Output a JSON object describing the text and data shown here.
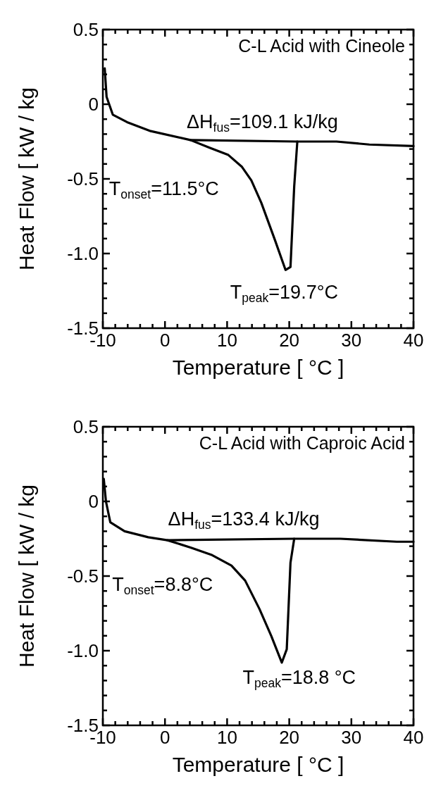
{
  "chart_data": [
    {
      "type": "line",
      "title": "C-L Acid with Cineole",
      "xlabel": "Temperature [ °C ]",
      "ylabel": "Heat Flow [ kW / kg",
      "xlim": [
        -10,
        40
      ],
      "ylim": [
        -1.5,
        0.5
      ],
      "xticks": [
        -10,
        {
          "value": -8,
          "label": null
        },
        {
          "value": -6,
          "label": null
        },
        {
          "value": -4,
          "label": null
        },
        {
          "value": -2,
          "label": null
        },
        0,
        {
          "value": 2,
          "label": null
        },
        {
          "value": 4,
          "label": null
        },
        {
          "value": 6,
          "label": null
        },
        {
          "value": 8,
          "label": null
        },
        10,
        {
          "value": 12,
          "label": null
        },
        {
          "value": 14,
          "label": null
        },
        {
          "value": 16,
          "label": null
        },
        {
          "value": 18,
          "label": null
        },
        20,
        {
          "value": 22,
          "label": null
        },
        {
          "value": 24,
          "label": null
        },
        {
          "value": 26,
          "label": null
        },
        {
          "value": 28,
          "label": null
        },
        30,
        {
          "value": 32,
          "label": null
        },
        {
          "value": 34,
          "label": null
        },
        {
          "value": 36,
          "label": null
        },
        {
          "value": 38,
          "label": null
        },
        40
      ],
      "yticks": [
        0.5,
        {
          "value": 0.4,
          "label": null
        },
        {
          "value": 0.3,
          "label": null
        },
        {
          "value": 0.2,
          "label": null
        },
        {
          "value": 0.1,
          "label": null
        },
        0,
        {
          "value": -0.1,
          "label": null
        },
        {
          "value": -0.2,
          "label": null
        },
        {
          "value": -0.3,
          "label": null
        },
        {
          "value": -0.4,
          "label": null
        },
        -0.5,
        {
          "value": -0.6,
          "label": null
        },
        {
          "value": -0.7,
          "label": null
        },
        {
          "value": -0.8,
          "label": null
        },
        {
          "value": -0.9,
          "label": null
        },
        {
          "value": -1,
          "label": "-1.0"
        },
        {
          "value": -1.1,
          "label": null
        },
        {
          "value": -1.2,
          "label": null
        },
        {
          "value": -1.3,
          "label": null
        },
        {
          "value": -1.4,
          "label": null
        },
        -1.5
      ],
      "series": [
        {
          "color": "#000000",
          "x": [
            -9.7,
            -9.4,
            -8.4,
            -6.1,
            -2.3,
            4.1,
            7.1,
            10.2,
            12.4,
            13.9,
            15.5,
            17.7,
            19.4,
            20.2,
            20.8,
            21.3,
            27.6,
            32.9,
            40
          ],
          "values": [
            0.24,
            0.05,
            -0.07,
            -0.12,
            -0.18,
            -0.24,
            -0.29,
            -0.34,
            -0.42,
            -0.51,
            -0.66,
            -0.91,
            -1.11,
            -1.09,
            -0.55,
            -0.25,
            -0.25,
            -0.27,
            -0.28
          ]
        },
        {
          "color": "#000000",
          "x": [
            4.1,
            21.3
          ],
          "values": [
            -0.24,
            -0.25
          ]
        }
      ],
      "annotations": [
        "ΔH$_{fus}$=109.1 kJ/kg",
        "T$_{onset}$=11.5°C",
        "T$_{peak}$=19.7°C"
      ]
    },
    {
      "type": "line",
      "title": "C-L Acid with Caproic Acid",
      "xlabel": "Temperature [ °C ]",
      "ylabel": "Heat Flow [ kW / kg",
      "xlim": [
        -10,
        40
      ],
      "ylim": [
        -1.5,
        0.5
      ],
      "xticks": [
        -10,
        {
          "value": -8,
          "label": null
        },
        {
          "value": -6,
          "label": null
        },
        {
          "value": -4,
          "label": null
        },
        {
          "value": -2,
          "label": null
        },
        0,
        {
          "value": 2,
          "label": null
        },
        {
          "value": 4,
          "label": null
        },
        {
          "value": 6,
          "label": null
        },
        {
          "value": 8,
          "label": null
        },
        10,
        {
          "value": 12,
          "label": null
        },
        {
          "value": 14,
          "label": null
        },
        {
          "value": 16,
          "label": null
        },
        {
          "value": 18,
          "label": null
        },
        20,
        {
          "value": 22,
          "label": null
        },
        {
          "value": 24,
          "label": null
        },
        {
          "value": 26,
          "label": null
        },
        {
          "value": 28,
          "label": null
        },
        30,
        {
          "value": 32,
          "label": null
        },
        {
          "value": 34,
          "label": null
        },
        {
          "value": 36,
          "label": null
        },
        {
          "value": 38,
          "label": null
        },
        40
      ],
      "yticks": [
        0.5,
        {
          "value": 0.4,
          "label": null
        },
        {
          "value": 0.3,
          "label": null
        },
        {
          "value": 0.2,
          "label": null
        },
        {
          "value": 0.1,
          "label": null
        },
        0,
        {
          "value": -0.1,
          "label": null
        },
        {
          "value": -0.2,
          "label": null
        },
        {
          "value": -0.3,
          "label": null
        },
        {
          "value": -0.4,
          "label": null
        },
        -0.5,
        {
          "value": -0.6,
          "label": null
        },
        {
          "value": -0.7,
          "label": null
        },
        {
          "value": -0.8,
          "label": null
        },
        {
          "value": -0.9,
          "label": null
        },
        {
          "value": -1,
          "label": "-1.0"
        },
        {
          "value": -1.1,
          "label": null
        },
        {
          "value": -1.2,
          "label": null
        },
        {
          "value": -1.3,
          "label": null
        },
        {
          "value": -1.4,
          "label": null
        },
        -1.5
      ],
      "series": [
        {
          "color": "#000000",
          "x": [
            -9.85,
            -9.5,
            -8.8,
            -6.5,
            -2.7,
            0.4,
            4.2,
            7.6,
            10.7,
            12.9,
            15.2,
            17.1,
            18.8,
            19.6,
            20.2,
            20.8,
            28.2,
            37.3,
            40
          ],
          "values": [
            0.15,
            0,
            -0.14,
            -0.2,
            -0.24,
            -0.26,
            -0.31,
            -0.36,
            -0.43,
            -0.53,
            -0.72,
            -0.9,
            -1.08,
            -0.99,
            -0.41,
            -0.25,
            -0.25,
            -0.27,
            -0.27
          ]
        },
        {
          "color": "#000000",
          "x": [
            0.4,
            20.8
          ],
          "values": [
            -0.26,
            -0.25
          ]
        }
      ],
      "annotations": [
        "ΔH$_{fus}$=133.4 kJ/kg",
        "T$_{onset}$=8.8°C",
        "T$_{peak}$=18.8 °C"
      ]
    }
  ]
}
